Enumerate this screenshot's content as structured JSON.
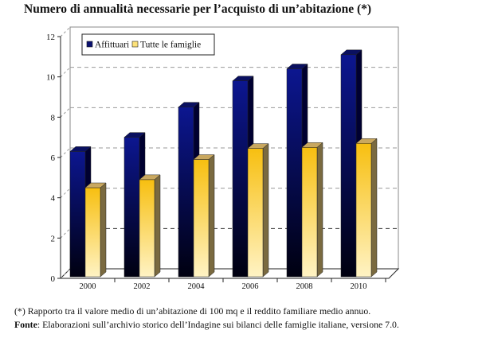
{
  "chart_data": {
    "type": "bar",
    "title": "Numero di annualità necessarie per l’acquisto di un’abitazione (*)",
    "categories": [
      "2000",
      "2002",
      "2004",
      "2006",
      "2008",
      "2010"
    ],
    "series": [
      {
        "name": "Affittuari",
        "color": "#0a1070",
        "values": [
          6.3,
          7.0,
          8.5,
          9.8,
          10.4,
          11.1
        ]
      },
      {
        "name": "Tutte le famiglie",
        "color": "#f7c520",
        "values": [
          4.5,
          4.9,
          5.9,
          6.45,
          6.5,
          6.7
        ]
      }
    ],
    "ylim": [
      0,
      12
    ],
    "yticks": [
      "0",
      "2",
      "4",
      "6",
      "8",
      "10",
      "12"
    ],
    "grid": true,
    "legend": "top-left",
    "style": "3d"
  },
  "notes": {
    "asterisk": "(*) Rapporto tra il valore medio di un’abitazione di 100 mq e il reddito familiare medio annuo.",
    "source_label": "Fonte",
    "source_text": ": Elaborazioni sull’archivio storico dell’Indagine sui bilanci delle famiglie italiane, versione 7.0."
  }
}
